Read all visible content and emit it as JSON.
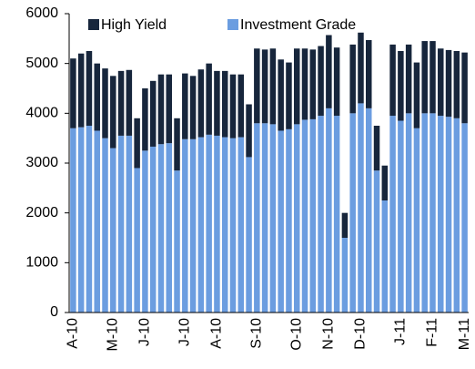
{
  "chart_data": {
    "type": "stacked_bar",
    "categories": [
      "A-10",
      null,
      null,
      null,
      null,
      "M-10",
      null,
      null,
      null,
      "J-10",
      null,
      null,
      null,
      null,
      "J-10",
      null,
      null,
      null,
      "A-10",
      null,
      null,
      null,
      null,
      "S-10",
      null,
      null,
      null,
      null,
      "O-10",
      null,
      null,
      null,
      "N-10",
      null,
      null,
      null,
      "D-10",
      null,
      null,
      null,
      null,
      "J-11",
      null,
      null,
      null,
      "F-11",
      null,
      null,
      null,
      "M-11"
    ],
    "series": [
      {
        "name": "High Yield",
        "color": "#17263c",
        "values": [
          1400,
          1480,
          1500,
          1350,
          1400,
          1450,
          1300,
          1320,
          1000,
          1250,
          1320,
          1400,
          1380,
          1050,
          1320,
          1270,
          1360,
          1430,
          1300,
          1330,
          1280,
          1260,
          1060,
          1500,
          1480,
          1520,
          1430,
          1340,
          1520,
          1430,
          1400,
          1400,
          1470,
          1370,
          500,
          1380,
          1420,
          1370,
          900,
          700,
          1430,
          1400,
          1380,
          1320,
          1450,
          1450,
          1350,
          1340,
          1350,
          1420
        ]
      },
      {
        "name": "Investment Grade",
        "color": "#6b9de0",
        "values": [
          3700,
          3720,
          3750,
          3650,
          3500,
          3300,
          3550,
          3550,
          2900,
          3250,
          3330,
          3380,
          3400,
          2850,
          3480,
          3480,
          3520,
          3570,
          3550,
          3520,
          3500,
          3520,
          3120,
          3800,
          3800,
          3780,
          3650,
          3680,
          3780,
          3870,
          3880,
          3950,
          4100,
          3950,
          1500,
          4000,
          4200,
          4100,
          2850,
          2250,
          3950,
          3850,
          4000,
          3700,
          4000,
          4000,
          3950,
          3930,
          3900,
          3800
        ]
      }
    ],
    "ylim": [
      0,
      6000
    ],
    "yticks": [
      0,
      1000,
      2000,
      3000,
      4000,
      5000,
      6000
    ],
    "legend": "top"
  }
}
